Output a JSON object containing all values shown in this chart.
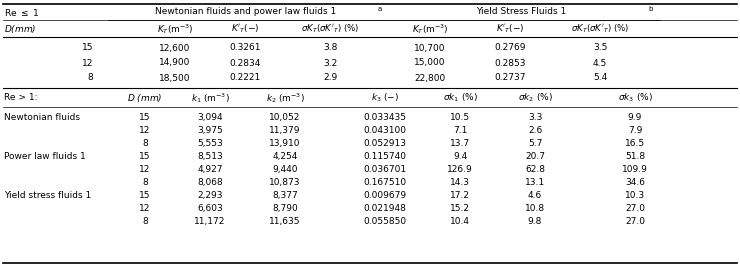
{
  "bg_color": "#ffffff",
  "fs": 6.5,
  "re_le1_rows": [
    [
      "15",
      "12,600",
      "0.3261",
      "3.8",
      "10,700",
      "0.2769",
      "3.5"
    ],
    [
      "12",
      "14,900",
      "0.2834",
      "3.2",
      "15,000",
      "0.2853",
      "4.5"
    ],
    [
      "8",
      "18,500",
      "0.2221",
      "2.9",
      "22,800",
      "0.2737",
      "5.4"
    ]
  ],
  "re_gt1_groups": [
    {
      "label": "Newtonian fluids",
      "rows": [
        [
          "15",
          "3,094",
          "10,052",
          "0.033435",
          "10.5",
          "3.3",
          "9.9"
        ],
        [
          "12",
          "3,975",
          "11,379",
          "0.043100",
          "7.1",
          "2.6",
          "7.9"
        ],
        [
          "8",
          "5,553",
          "13,910",
          "0.052913",
          "13.7",
          "5.7",
          "16.5"
        ]
      ]
    },
    {
      "label": "Power law fluids 1",
      "rows": [
        [
          "15",
          "8,513",
          "4,254",
          "0.115740",
          "9.4",
          "20.7",
          "51.8"
        ],
        [
          "12",
          "4,927",
          "9,440",
          "0.036701",
          "126.9",
          "62.8",
          "109.9"
        ],
        [
          "8",
          "8,068",
          "10,873",
          "0.167510",
          "14.3",
          "13.1",
          "34.6"
        ]
      ]
    },
    {
      "label": "Yield stress fluids 1",
      "rows": [
        [
          "15",
          "2,293",
          "8,377",
          "0.009679",
          "17.2",
          "4.6",
          "10.3"
        ],
        [
          "12",
          "6,603",
          "8,790",
          "0.021948",
          "15.2",
          "10.8",
          "27.0"
        ],
        [
          "8",
          "11,172",
          "11,635",
          "0.055850",
          "10.4",
          "9.8",
          "27.0"
        ]
      ]
    }
  ]
}
